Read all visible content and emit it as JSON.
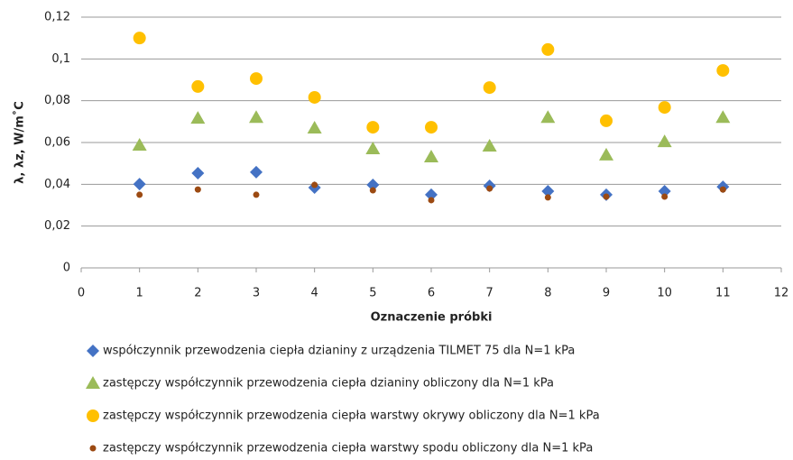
{
  "chart_data": {
    "type": "scatter",
    "x_label": "Oznaczenie próbki",
    "y_label": "λ, λz, W/m˚C",
    "x": [
      1,
      2,
      3,
      4,
      5,
      6,
      7,
      8,
      9,
      10,
      11
    ],
    "series": [
      {
        "name": "współczynnik przewodzenia ciepła dzianiny z urządzenia TILMET 75 dla N=1 kPa",
        "color": "#4472c4",
        "marker": "diamond",
        "values": [
          0.0401,
          0.0453,
          0.0458,
          0.0384,
          0.0397,
          0.035,
          0.0393,
          0.0367,
          0.035,
          0.0367,
          0.0388
        ]
      },
      {
        "name": "zastępczy współczynnik przewodzenia ciepła dzianiny obliczony dla N=1 kPa",
        "color": "#9bbb59",
        "marker": "triangle",
        "values": [
          0.0587,
          0.0716,
          0.072,
          0.0669,
          0.057,
          0.0531,
          0.0583,
          0.072,
          0.054,
          0.0604,
          0.072
        ]
      },
      {
        "name": "zastępczy współczynnik przewodzenia ciepła warstwy okrywy obliczony dla N=1 kPa",
        "color": "#ffc000",
        "marker": "circle",
        "values": [
          0.11,
          0.0868,
          0.0906,
          0.0816,
          0.0673,
          0.0673,
          0.0863,
          0.1045,
          0.0704,
          0.0768,
          0.0945
        ]
      },
      {
        "name": "zastępczy współczynnik przewodzenia ciepła warstwy spodu obliczony dla N=1 kPa",
        "color": "#9c4a12",
        "marker": "small-circle",
        "values": [
          0.035,
          0.0375,
          0.035,
          0.0397,
          0.0371,
          0.0324,
          0.038,
          0.0337,
          0.0341,
          0.0341,
          0.0375
        ]
      }
    ],
    "xlim": [
      0,
      12
    ],
    "xticks": [
      0,
      1,
      2,
      3,
      4,
      5,
      6,
      7,
      8,
      9,
      10,
      11,
      12
    ],
    "ylim": [
      0,
      0.12
    ],
    "yticks": [
      0,
      {
        "value": 0.02,
        "label": "0,02"
      },
      {
        "value": 0.04,
        "label": "0,04"
      },
      {
        "value": 0.06,
        "label": "0,06"
      },
      {
        "value": 0.08,
        "label": "0,08"
      },
      {
        "value": 0.1,
        "label": "0,1"
      },
      {
        "value": 0.12,
        "label": "0,12"
      }
    ],
    "grid": true,
    "legend": "bottom"
  }
}
